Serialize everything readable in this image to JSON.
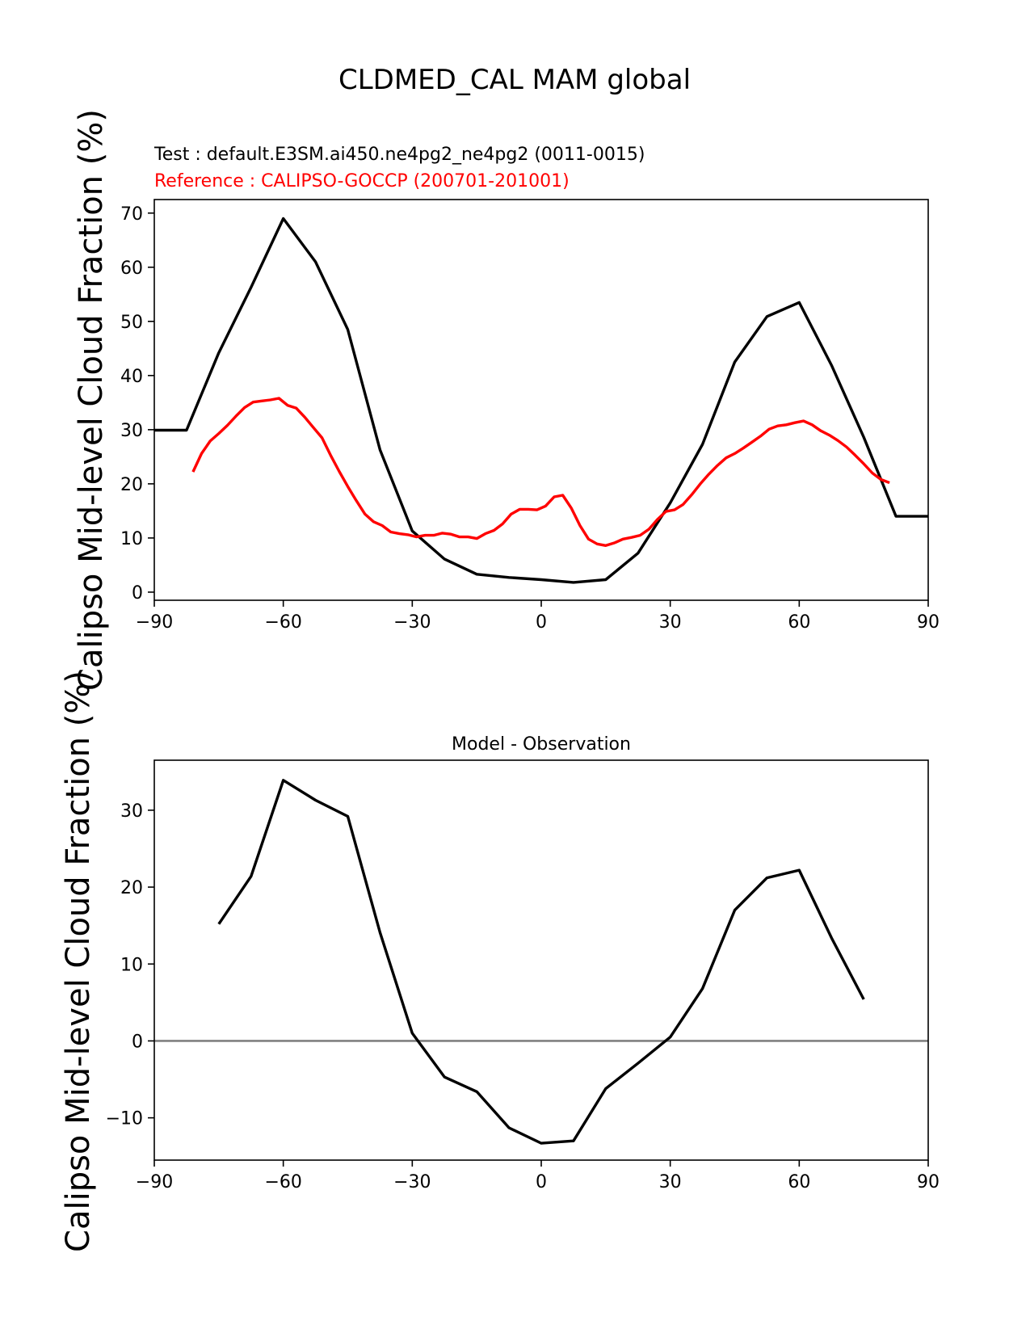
{
  "figure_title": "CLDMED_CAL MAM global",
  "test_label": "Test : default.E3SM.ai450.ne4pg2_ne4pg2 (0011-0015)",
  "reference_label": "Reference : CALIPSO-GOCCP (200701-201001)",
  "colors": {
    "test": "#000000",
    "reference": "#ff0000",
    "zero_line": "#808080"
  },
  "chart_data": [
    {
      "type": "line",
      "title": "",
      "xlabel": "",
      "ylabel": "Calipso Mid-level Cloud Fraction (%)",
      "xlim": [
        -90,
        90
      ],
      "ylim": [
        -1.5,
        72.5
      ],
      "xticks": [
        -90,
        -60,
        -30,
        0,
        30,
        60,
        90
      ],
      "xtick_labels": [
        "−90",
        "−60",
        "−30",
        "0",
        "30",
        "60",
        "90"
      ],
      "yticks": [
        0,
        10,
        20,
        30,
        40,
        50,
        60,
        70
      ],
      "ytick_labels": [
        "0",
        "10",
        "20",
        "30",
        "40",
        "50",
        "60",
        "70"
      ],
      "grid": false,
      "series": [
        {
          "name": "Test : default.E3SM.ai450.ne4pg2_ne4pg2 (0011-0015)",
          "color": "#000000",
          "x": [
            -90,
            -82.5,
            -75,
            -67.5,
            -60,
            -52.5,
            -45,
            -37.5,
            -30,
            -22.5,
            -15,
            -7.5,
            0,
            7.5,
            15,
            22.5,
            30,
            37.5,
            45,
            52.5,
            60,
            67.5,
            75,
            82.5,
            90
          ],
          "y": [
            29.9,
            29.9,
            44.2,
            56.3,
            69.0,
            61.0,
            48.5,
            26.3,
            11.3,
            6.1,
            3.3,
            2.7,
            2.3,
            1.8,
            2.3,
            7.2,
            16.5,
            27.3,
            42.5,
            50.9,
            53.5,
            41.9,
            28.6,
            14.0,
            14.0
          ]
        },
        {
          "name": "Reference : CALIPSO-GOCCP (200701-201001)",
          "color": "#ff0000",
          "x": [
            -81,
            -79,
            -77,
            -75,
            -73,
            -71,
            -69,
            -67,
            -65,
            -63,
            -61,
            -59,
            -57,
            -55,
            -53,
            -51,
            -49,
            -47,
            -45,
            -43,
            -41,
            -39,
            -37,
            -35,
            -33,
            -31,
            -29,
            -27,
            -25,
            -23,
            -21,
            -19,
            -17,
            -15,
            -13,
            -11,
            -9,
            -7,
            -5,
            -3,
            -1,
            1,
            3,
            5,
            7,
            9,
            11,
            13,
            15,
            17,
            19,
            21,
            23,
            25,
            27,
            29,
            31,
            33,
            35,
            37,
            39,
            41,
            43,
            45,
            47,
            49,
            51,
            53,
            55,
            57,
            59,
            61,
            63,
            65,
            67,
            69,
            71,
            73,
            75,
            77,
            79,
            81
          ],
          "y": [
            22.2,
            25.6,
            27.9,
            29.3,
            30.8,
            32.5,
            34.1,
            35.1,
            35.3,
            35.5,
            35.8,
            34.5,
            34.0,
            32.3,
            30.4,
            28.5,
            25.3,
            22.3,
            19.5,
            16.9,
            14.4,
            13.0,
            12.3,
            11.1,
            10.8,
            10.6,
            10.2,
            10.5,
            10.5,
            10.9,
            10.7,
            10.2,
            10.2,
            9.9,
            10.8,
            11.4,
            12.6,
            14.4,
            15.3,
            15.3,
            15.2,
            15.9,
            17.6,
            17.9,
            15.5,
            12.3,
            9.8,
            8.9,
            8.6,
            9.1,
            9.8,
            10.1,
            10.5,
            11.6,
            13.4,
            14.9,
            15.2,
            16.2,
            18.0,
            20.0,
            21.8,
            23.4,
            24.8,
            25.6,
            26.6,
            27.7,
            28.8,
            30.1,
            30.7,
            30.9,
            31.3,
            31.6,
            30.9,
            29.8,
            29.0,
            28.0,
            26.8,
            25.3,
            23.7,
            22.0,
            20.8,
            20.2
          ]
        }
      ]
    },
    {
      "type": "line",
      "title": "Model - Observation",
      "xlabel": "",
      "ylabel": "Calipso Mid-level Cloud Fraction (%)",
      "xlim": [
        -90,
        90
      ],
      "ylim": [
        -15.5,
        36.5
      ],
      "xticks": [
        -90,
        -60,
        -30,
        0,
        30,
        60,
        90
      ],
      "xtick_labels": [
        "−90",
        "−60",
        "−30",
        "0",
        "30",
        "60",
        "90"
      ],
      "yticks": [
        -10,
        0,
        10,
        20,
        30
      ],
      "ytick_labels": [
        "−10",
        "0",
        "10",
        "20",
        "30"
      ],
      "grid": false,
      "zero_line": true,
      "series": [
        {
          "color": "#000000",
          "x": [
            -75,
            -67.5,
            -60,
            -52.5,
            -45,
            -37.5,
            -30,
            -22.5,
            -15,
            -7.5,
            0,
            7.5,
            15,
            22.5,
            30,
            37.5,
            45,
            52.5,
            60,
            67.5,
            75
          ],
          "y": [
            15.2,
            21.4,
            33.9,
            31.3,
            29.2,
            14.1,
            1.0,
            -4.7,
            -6.6,
            -11.3,
            -13.3,
            -13.0,
            -6.2,
            -2.9,
            0.5,
            6.8,
            17.0,
            21.2,
            22.2,
            13.4,
            5.4
          ]
        }
      ]
    }
  ]
}
